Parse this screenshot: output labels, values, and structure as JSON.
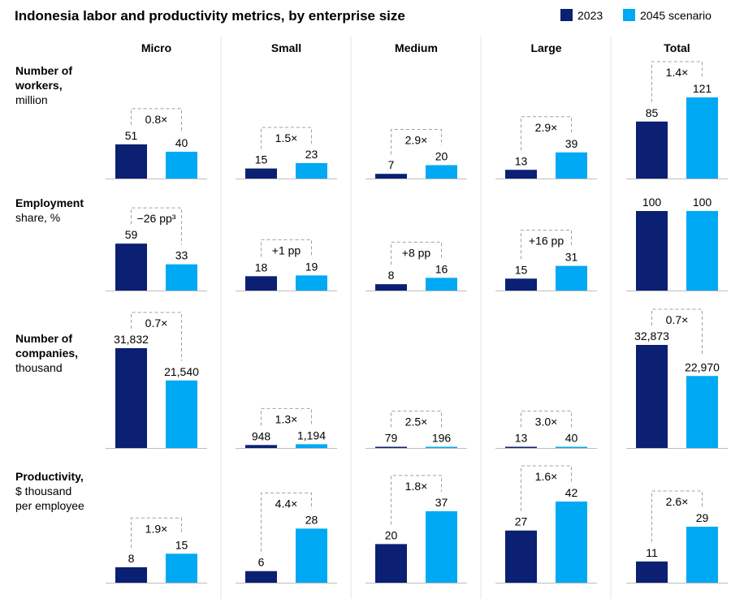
{
  "title": "Indonesia labor and productivity metrics, by enterprise size",
  "legend": [
    {
      "label": "2023",
      "color": "#0b1f73"
    },
    {
      "label": "2045 scenario",
      "color": "#00a9f4"
    }
  ],
  "chart_data": {
    "type": "bar",
    "title": "Indonesia labor and productivity metrics, by enterprise size",
    "categories": [
      "Micro",
      "Small",
      "Medium",
      "Large",
      "Total"
    ],
    "series_names": [
      "2023",
      "2045 scenario"
    ],
    "legend_placement": "top-right",
    "grid": false,
    "rows": [
      {
        "label": [
          "Number of",
          "workers,",
          "million"
        ],
        "bold_lines": 2,
        "values_2023": [
          51,
          15,
          7,
          13,
          85
        ],
        "values_2045": [
          40,
          23,
          20,
          39,
          121
        ],
        "labels_2023": [
          "51",
          "15",
          "7",
          "13",
          "85"
        ],
        "labels_2045": [
          "40",
          "23",
          "20",
          "39",
          "121"
        ],
        "changes": [
          "0.8×",
          "1.5×",
          "2.9×",
          "2.9×",
          "1.4×"
        ]
      },
      {
        "label": [
          "Employment",
          "share, %"
        ],
        "bold_lines": 1,
        "bold_partial": "Employment",
        "values_2023": [
          59,
          18,
          8,
          15,
          100
        ],
        "values_2045": [
          33,
          19,
          16,
          31,
          100
        ],
        "labels_2023": [
          "59",
          "18",
          "8",
          "15",
          "100"
        ],
        "labels_2045": [
          "33",
          "19",
          "16",
          "31",
          "100"
        ],
        "changes": [
          "−26 pp³",
          "+1 pp",
          "+8 pp",
          "+16 pp",
          ""
        ]
      },
      {
        "label": [
          "Number of",
          "companies,",
          "thousand"
        ],
        "bold_lines": 2,
        "values_2023": [
          31832,
          948,
          79,
          13,
          32873
        ],
        "values_2045": [
          21540,
          1194,
          196,
          40,
          22970
        ],
        "labels_2023": [
          "31,832",
          "948",
          "79",
          "13",
          "32,873"
        ],
        "labels_2045": [
          "21,540",
          "1,194",
          "196",
          "40",
          "22,970"
        ],
        "changes": [
          "0.7×",
          "1.3×",
          "2.5×",
          "3.0×",
          "0.7×"
        ]
      },
      {
        "label": [
          "Productivity,",
          "$ thousand",
          "per employee"
        ],
        "bold_lines": 1,
        "values_2023": [
          8,
          6,
          20,
          27,
          11
        ],
        "values_2045": [
          15,
          28,
          37,
          42,
          29
        ],
        "labels_2023": [
          "8",
          "6",
          "20",
          "27",
          "11"
        ],
        "labels_2045": [
          "15",
          "28",
          "37",
          "42",
          "29"
        ],
        "changes": [
          "1.9×",
          "4.4×",
          "1.8×",
          "1.6×",
          "2.6×"
        ]
      }
    ]
  }
}
